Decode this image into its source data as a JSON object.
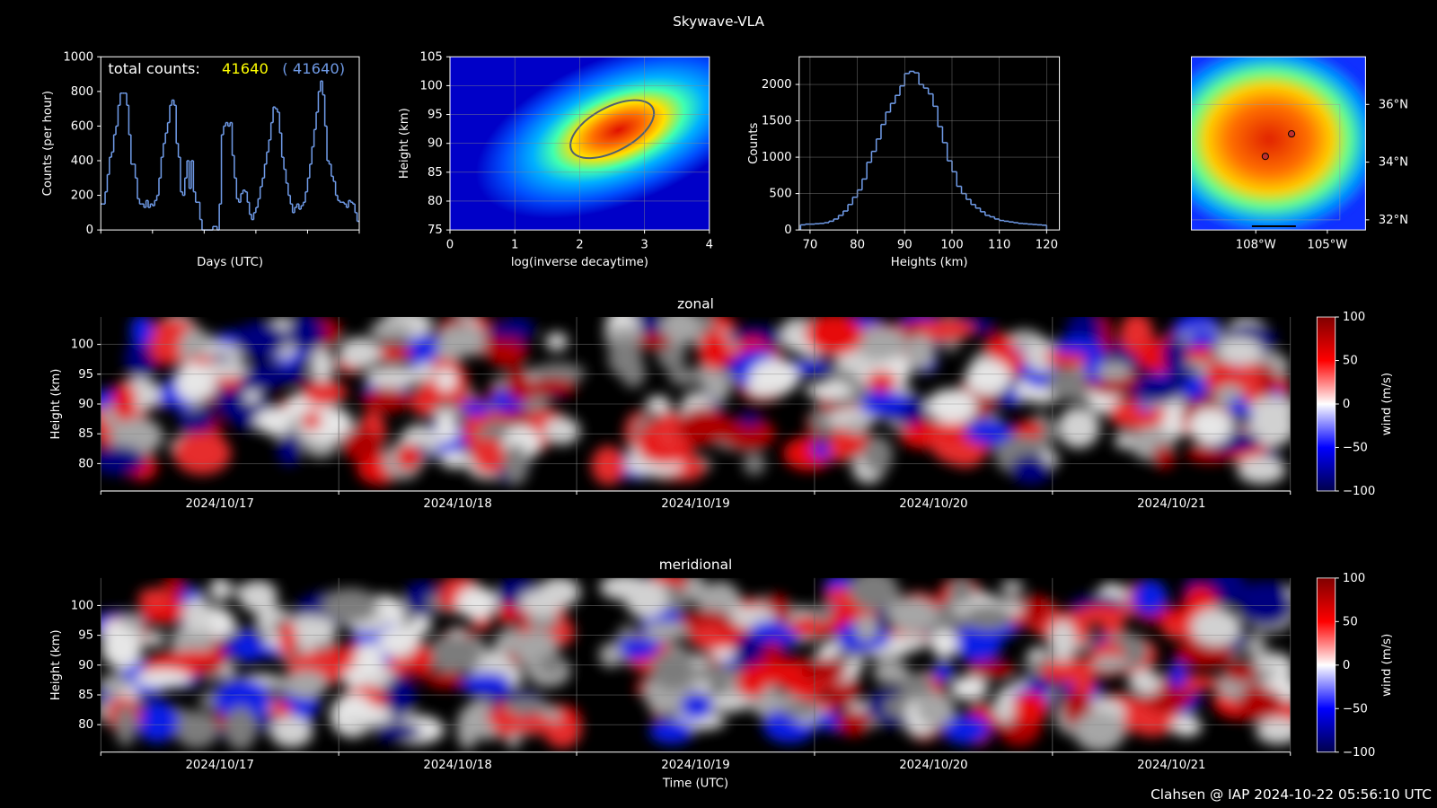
{
  "title": "Skywave-VLA",
  "footer": "Clahsen @ IAP 2024-10-22 05:56:10 UTC",
  "chart_data": [
    {
      "type": "step",
      "xlabel": "Days (UTC)",
      "ylabel": "Counts (per hour)",
      "color": "#6f9ae6",
      "annotations": [
        {
          "text": "total counts:",
          "color": "#ffffff"
        },
        {
          "text": "41640",
          "color": "#ffff00"
        },
        {
          "text": "( 41640)",
          "color": "#6f9ae6"
        }
      ],
      "ylim": [
        0,
        1000
      ],
      "yticks": [
        0,
        200,
        400,
        600,
        800,
        1000
      ],
      "values": [
        150,
        150,
        220,
        320,
        420,
        450,
        550,
        600,
        720,
        790,
        790,
        790,
        720,
        550,
        380,
        380,
        300,
        180,
        150,
        150,
        130,
        170,
        130,
        150,
        140,
        170,
        200,
        300,
        420,
        500,
        560,
        620,
        720,
        750,
        720,
        500,
        420,
        220,
        200,
        300,
        400,
        240,
        400,
        220,
        160,
        160,
        60,
        0,
        0,
        0,
        0,
        0,
        20,
        20,
        0,
        150,
        550,
        600,
        620,
        600,
        620,
        430,
        300,
        180,
        160,
        210,
        230,
        220,
        160,
        90,
        60,
        100,
        130,
        180,
        250,
        300,
        380,
        450,
        520,
        620,
        710,
        700,
        680,
        560,
        420,
        350,
        270,
        200,
        150,
        100,
        130,
        150,
        120,
        140,
        160,
        220,
        300,
        380,
        480,
        580,
        680,
        800,
        860,
        780,
        600,
        400,
        380,
        310,
        280,
        200,
        170,
        160,
        160,
        150,
        130,
        170,
        160,
        150,
        100,
        50
      ]
    },
    {
      "type": "heatmap",
      "xlabel": "log(inverse decaytime)",
      "ylabel": "Height (km)",
      "grid": true,
      "xlim": [
        0,
        4
      ],
      "xticks": [
        0,
        1,
        2,
        3,
        4
      ],
      "ylim": [
        75,
        105
      ],
      "yticks": [
        75,
        80,
        85,
        90,
        95,
        100,
        105
      ]
    },
    {
      "type": "histogram",
      "xlabel": "Heights (km)",
      "ylabel": "Counts",
      "grid": true,
      "color": "#6f9ae6",
      "xlim": [
        67.7,
        122.7
      ],
      "xticks": [
        70,
        80,
        90,
        100,
        110,
        120
      ],
      "ylim": [
        0,
        2380
      ],
      "yticks": [
        0,
        500,
        1000,
        1500,
        2000
      ],
      "bins": [
        68,
        69,
        70,
        71,
        72,
        73,
        74,
        75,
        76,
        77,
        78,
        79,
        80,
        81,
        82,
        83,
        84,
        85,
        86,
        87,
        88,
        89,
        90,
        91,
        92,
        93,
        94,
        95,
        96,
        97,
        98,
        99,
        100,
        101,
        102,
        103,
        104,
        105,
        106,
        107,
        108,
        109,
        110,
        111,
        112,
        113,
        114,
        115,
        116,
        117,
        118,
        119,
        120
      ],
      "values": [
        70,
        80,
        80,
        85,
        90,
        100,
        120,
        150,
        200,
        260,
        350,
        450,
        550,
        700,
        930,
        1080,
        1250,
        1450,
        1620,
        1740,
        1850,
        1980,
        2150,
        2180,
        2160,
        2000,
        1950,
        1870,
        1700,
        1420,
        1200,
        950,
        800,
        600,
        500,
        420,
        350,
        300,
        250,
        200,
        180,
        150,
        130,
        120,
        110,
        100,
        90,
        85,
        80,
        75,
        70,
        65
      ]
    },
    {
      "type": "map",
      "color": "#c03030",
      "xlim": [
        -110.7,
        -103.4
      ],
      "xticks": [
        {
          "value": -108,
          "label": "108°W"
        },
        {
          "value": -105,
          "label": "105°W"
        }
      ],
      "ylim": [
        31.65,
        37.65
      ],
      "yticks": [
        {
          "value": 32,
          "label": "32°N"
        },
        {
          "value": 34,
          "label": "34°N"
        },
        {
          "value": 36,
          "label": "36°N"
        }
      ],
      "x": [
        -106.5,
        -107.6
      ],
      "values": [
        34.98,
        34.2
      ]
    },
    {
      "type": "wind",
      "title": "zonal",
      "ylabel": "Height (km)",
      "grid": true,
      "categories": [
        "2024/10/17",
        "2024/10/18",
        "2024/10/19",
        "2024/10/20",
        "2024/10/21"
      ],
      "ylim": [
        75.4,
        104.6
      ],
      "yticks": [
        80,
        85,
        90,
        95,
        100
      ],
      "colorbar": {
        "label": "wind (m/s)",
        "lim": [
          -100,
          100
        ],
        "ticks": [
          {
            "value": -100,
            "label": "−100"
          },
          {
            "value": -50,
            "label": "−50"
          },
          0,
          50,
          100
        ]
      }
    },
    {
      "type": "wind",
      "title": "meridional",
      "ylabel": "Height (km)",
      "xlabel": "Time (UTC)",
      "grid": true,
      "categories": [
        "2024/10/17",
        "2024/10/18",
        "2024/10/19",
        "2024/10/20",
        "2024/10/21"
      ],
      "ylim": [
        75.4,
        104.6
      ],
      "yticks": [
        80,
        85,
        90,
        95,
        100
      ],
      "colorbar": {
        "label": "wind (m/s)",
        "lim": [
          -100,
          100
        ],
        "ticks": [
          {
            "value": -100,
            "label": "−100"
          },
          {
            "value": -50,
            "label": "−50"
          },
          0,
          50,
          100
        ]
      }
    }
  ]
}
